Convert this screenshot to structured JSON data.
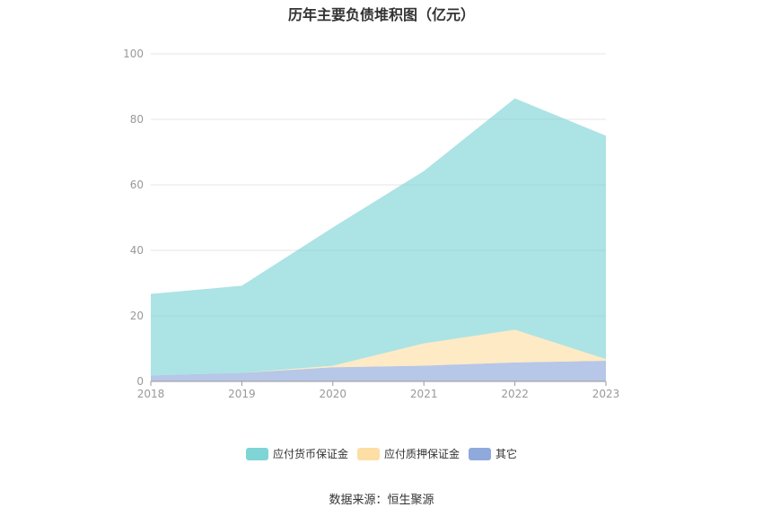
{
  "chart_data": {
    "type": "area",
    "stacked": true,
    "title": "历年主要负债堆积图（亿元）",
    "x": [
      "2018",
      "2019",
      "2020",
      "2021",
      "2022",
      "2023"
    ],
    "ylim": [
      0,
      100
    ],
    "yticks": [
      0,
      20,
      40,
      60,
      80,
      100
    ],
    "grid": true,
    "legend_position": "bottom",
    "series": [
      {
        "name": "其它",
        "color": "#8fa9dc",
        "values": [
          1.8,
          2.6,
          4.3,
          4.8,
          5.8,
          6.3
        ]
      },
      {
        "name": "应付质押保证金",
        "color": "#fddea5",
        "values": [
          0.0,
          0.0,
          0.5,
          6.8,
          10.0,
          0.5
        ]
      },
      {
        "name": "应付货币保证金",
        "color": "#7fd4d6",
        "values": [
          24.9,
          26.6,
          42.2,
          52.6,
          70.6,
          68.2
        ]
      }
    ],
    "legend_order": [
      "应付货币保证金",
      "应付质押保证金",
      "其它"
    ],
    "source": "数据来源：恒生聚源"
  }
}
